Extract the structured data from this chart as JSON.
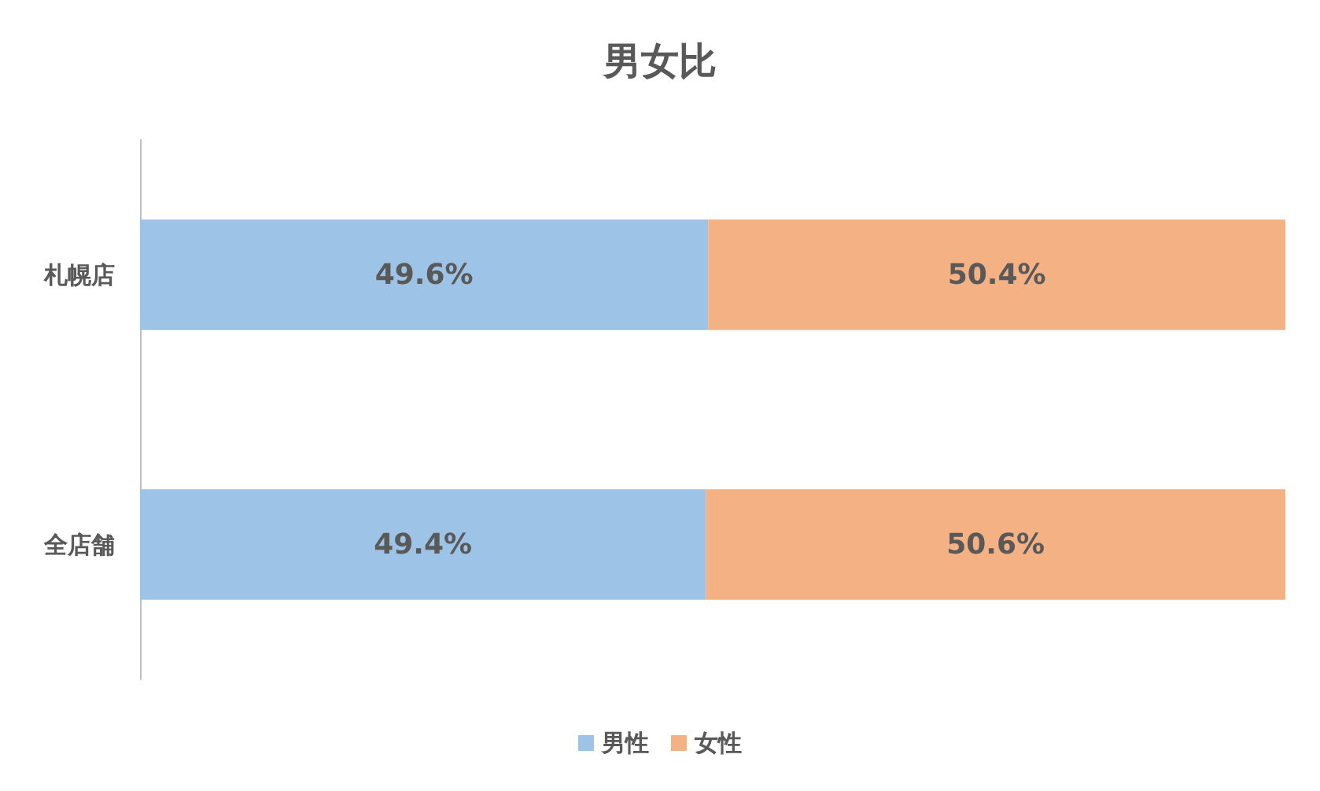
{
  "chart_data": {
    "type": "bar",
    "orientation": "horizontal",
    "stacked": true,
    "title": "男女比",
    "categories": [
      "札幌店",
      "全店舗"
    ],
    "series": [
      {
        "name": "男性",
        "color": "#9dc3e6",
        "values": [
          49.6,
          49.4
        ],
        "value_labels": [
          "49.6%",
          "49.4%"
        ]
      },
      {
        "name": "女性",
        "color": "#f4b183",
        "values": [
          50.4,
          50.6
        ],
        "value_labels": [
          "50.4%",
          "50.6%"
        ]
      }
    ],
    "legend": "bottom"
  }
}
